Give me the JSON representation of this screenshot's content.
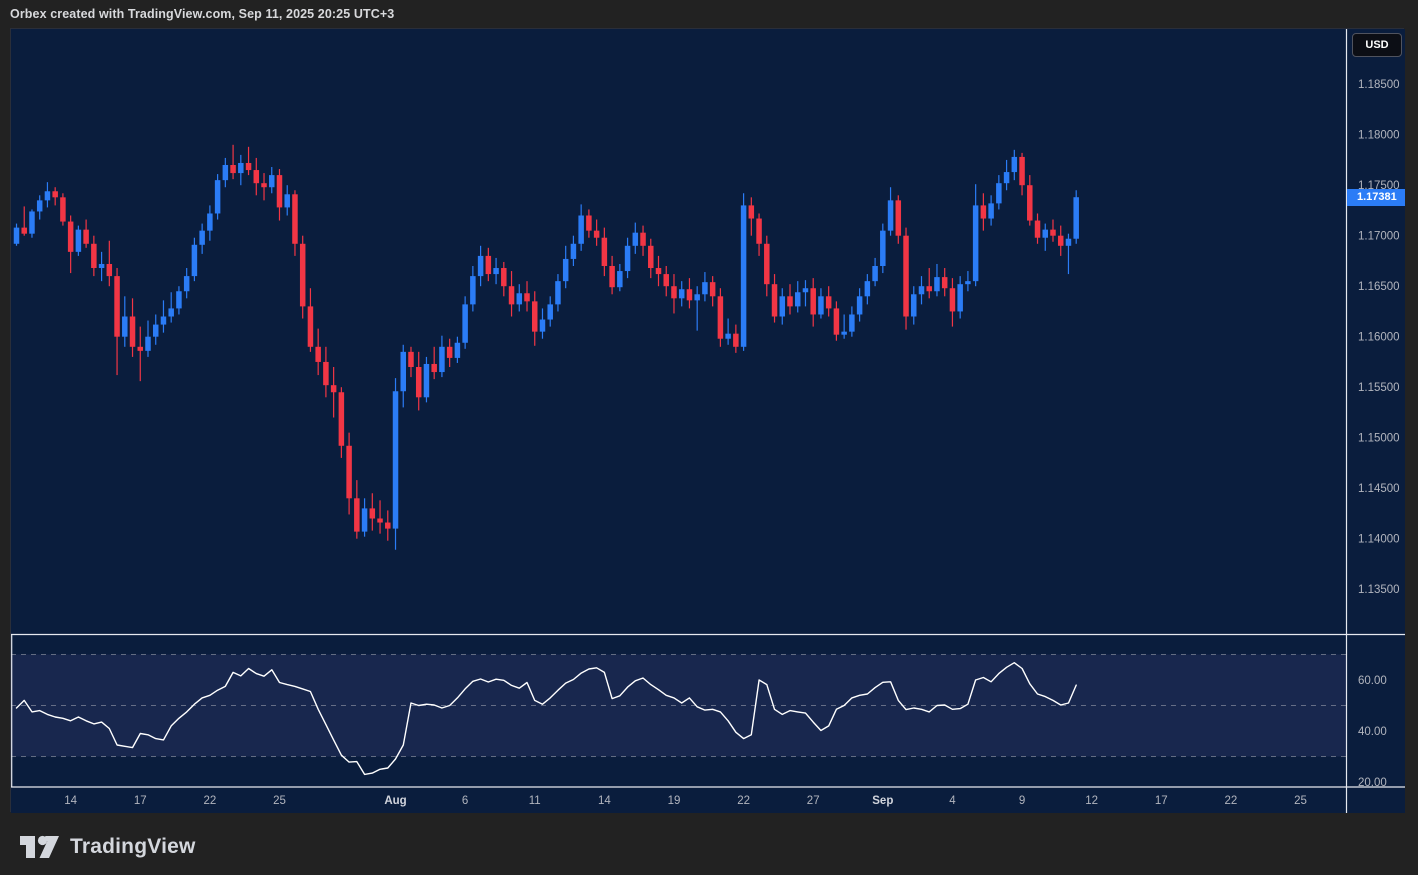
{
  "header": {
    "title": "Orbex created with TradingView.com, Sep 11, 2025 20:25 UTC+3"
  },
  "price_scale": {
    "currency_button": "USD",
    "ticks": [
      1.185,
      1.18,
      1.175,
      1.17,
      1.165,
      1.16,
      1.155,
      1.15,
      1.145,
      1.14,
      1.135
    ],
    "last_price": "1.17381"
  },
  "rsi_scale": {
    "ticks": [
      60,
      40,
      20
    ],
    "levels": [
      70,
      50,
      30
    ]
  },
  "time_scale": {
    "labels": [
      {
        "text": "14",
        "index": 7,
        "major": false
      },
      {
        "text": "17",
        "index": 16,
        "major": false
      },
      {
        "text": "22",
        "index": 25,
        "major": false
      },
      {
        "text": "25",
        "index": 34,
        "major": false
      },
      {
        "text": "Aug",
        "index": 49,
        "major": true
      },
      {
        "text": "6",
        "index": 58,
        "major": false
      },
      {
        "text": "11",
        "index": 67,
        "major": false
      },
      {
        "text": "14",
        "index": 76,
        "major": false
      },
      {
        "text": "19",
        "index": 85,
        "major": false
      },
      {
        "text": "22",
        "index": 94,
        "major": false
      },
      {
        "text": "27",
        "index": 103,
        "major": false
      },
      {
        "text": "Sep",
        "index": 112,
        "major": true
      },
      {
        "text": "4",
        "index": 121,
        "major": false
      },
      {
        "text": "9",
        "index": 130,
        "major": false
      },
      {
        "text": "12",
        "index": 139,
        "major": false
      },
      {
        "text": "17",
        "index": 148,
        "major": false
      },
      {
        "text": "22",
        "index": 157,
        "major": false
      },
      {
        "text": "25",
        "index": 166,
        "major": false
      }
    ]
  },
  "footer": {
    "brand": "TradingView"
  },
  "colors": {
    "bg_outer": "#222222",
    "bg_chart": "#0a1d3d",
    "up": "#2b7cf6",
    "down": "#f23645",
    "accent": "#2b7cf6",
    "axis_text": "#b2b5be",
    "axis_text_major": "#d1d4dc",
    "separator": "#e6e9f0",
    "rsi_line": "#ffffff",
    "rsi_band": "rgba(127,111,190,0.13)",
    "dashed_level": "rgba(178,181,190,0.5)"
  },
  "chart_data": {
    "type": "candlestick",
    "interval": "8h",
    "quote_currency": "USD",
    "price_range_visible": [
      1.135,
      1.185
    ],
    "rsi_levels": [
      70,
      50,
      30
    ],
    "candles": [
      [
        1.1692,
        1.1712,
        1.169,
        1.1708
      ],
      [
        1.1708,
        1.1729,
        1.17,
        1.1702
      ],
      [
        1.1702,
        1.1726,
        1.1698,
        1.1724
      ],
      [
        1.1724,
        1.174,
        1.1716,
        1.1735
      ],
      [
        1.1735,
        1.1753,
        1.1728,
        1.1744
      ],
      [
        1.1744,
        1.1748,
        1.173,
        1.1738
      ],
      [
        1.1738,
        1.1742,
        1.171,
        1.1714
      ],
      [
        1.1714,
        1.172,
        1.1663,
        1.1684
      ],
      [
        1.1684,
        1.171,
        1.168,
        1.1706
      ],
      [
        1.1706,
        1.1716,
        1.1688,
        1.1692
      ],
      [
        1.1692,
        1.17,
        1.166,
        1.1668
      ],
      [
        1.1668,
        1.1684,
        1.1655,
        1.1672
      ],
      [
        1.1672,
        1.1695,
        1.165,
        1.166
      ],
      [
        1.166,
        1.1668,
        1.1562,
        1.16
      ],
      [
        1.16,
        1.164,
        1.159,
        1.162
      ],
      [
        1.162,
        1.1638,
        1.158,
        1.159
      ],
      [
        1.159,
        1.161,
        1.1556,
        1.1586
      ],
      [
        1.1586,
        1.1616,
        1.158,
        1.16
      ],
      [
        1.16,
        1.1622,
        1.1592,
        1.1612
      ],
      [
        1.1612,
        1.1636,
        1.1604,
        1.162
      ],
      [
        1.162,
        1.1644,
        1.1614,
        1.1628
      ],
      [
        1.1628,
        1.165,
        1.1622,
        1.1645
      ],
      [
        1.1645,
        1.1668,
        1.1638,
        1.166
      ],
      [
        1.166,
        1.1698,
        1.1655,
        1.1691
      ],
      [
        1.1691,
        1.1712,
        1.1682,
        1.1705
      ],
      [
        1.1705,
        1.173,
        1.1695,
        1.1722
      ],
      [
        1.1722,
        1.1761,
        1.1716,
        1.1755
      ],
      [
        1.1755,
        1.1777,
        1.1748,
        1.177
      ],
      [
        1.177,
        1.179,
        1.1756,
        1.1762
      ],
      [
        1.1762,
        1.178,
        1.175,
        1.1772
      ],
      [
        1.1772,
        1.1788,
        1.176,
        1.1765
      ],
      [
        1.1765,
        1.1777,
        1.174,
        1.1752
      ],
      [
        1.1752,
        1.1762,
        1.1735,
        1.1748
      ],
      [
        1.1748,
        1.1768,
        1.1742,
        1.176
      ],
      [
        1.176,
        1.1766,
        1.1715,
        1.1728
      ],
      [
        1.1728,
        1.175,
        1.172,
        1.1741
      ],
      [
        1.1741,
        1.1745,
        1.168,
        1.1692
      ],
      [
        1.1692,
        1.17,
        1.1618,
        1.163
      ],
      [
        1.163,
        1.1648,
        1.1585,
        1.159
      ],
      [
        1.159,
        1.1608,
        1.1562,
        1.1575
      ],
      [
        1.1575,
        1.159,
        1.154,
        1.1552
      ],
      [
        1.1552,
        1.157,
        1.152,
        1.1545
      ],
      [
        1.1545,
        1.155,
        1.148,
        1.1492
      ],
      [
        1.1492,
        1.1505,
        1.1424,
        1.144
      ],
      [
        1.144,
        1.1458,
        1.14,
        1.1407
      ],
      [
        1.1407,
        1.144,
        1.1402,
        1.143
      ],
      [
        1.143,
        1.1445,
        1.1408,
        1.142
      ],
      [
        1.142,
        1.1438,
        1.1405,
        1.1416
      ],
      [
        1.1416,
        1.1428,
        1.1398,
        1.141
      ],
      [
        1.141,
        1.1559,
        1.1389,
        1.1546
      ],
      [
        1.1546,
        1.1592,
        1.153,
        1.1585
      ],
      [
        1.1585,
        1.159,
        1.156,
        1.157
      ],
      [
        1.157,
        1.1585,
        1.1527,
        1.154
      ],
      [
        1.154,
        1.158,
        1.1535,
        1.1573
      ],
      [
        1.1573,
        1.159,
        1.1558,
        1.1565
      ],
      [
        1.1565,
        1.1601,
        1.156,
        1.159
      ],
      [
        1.159,
        1.1598,
        1.157,
        1.1579
      ],
      [
        1.1579,
        1.16,
        1.1574,
        1.1594
      ],
      [
        1.1594,
        1.164,
        1.1588,
        1.1632
      ],
      [
        1.1632,
        1.167,
        1.1625,
        1.166
      ],
      [
        1.166,
        1.169,
        1.165,
        1.168
      ],
      [
        1.168,
        1.1688,
        1.1655,
        1.1662
      ],
      [
        1.1662,
        1.1678,
        1.1652,
        1.1668
      ],
      [
        1.1668,
        1.1674,
        1.164,
        1.165
      ],
      [
        1.165,
        1.1665,
        1.162,
        1.1632
      ],
      [
        1.1632,
        1.1652,
        1.1625,
        1.1643
      ],
      [
        1.1643,
        1.1655,
        1.1625,
        1.1635
      ],
      [
        1.1635,
        1.1645,
        1.1591,
        1.1605
      ],
      [
        1.1605,
        1.1628,
        1.1598,
        1.1617
      ],
      [
        1.1617,
        1.164,
        1.161,
        1.1632
      ],
      [
        1.1632,
        1.1662,
        1.1625,
        1.1655
      ],
      [
        1.1655,
        1.169,
        1.1648,
        1.1677
      ],
      [
        1.1677,
        1.17,
        1.167,
        1.1692
      ],
      [
        1.1692,
        1.1731,
        1.1685,
        1.172
      ],
      [
        1.172,
        1.1726,
        1.1698,
        1.1705
      ],
      [
        1.1705,
        1.1716,
        1.169,
        1.1698
      ],
      [
        1.1698,
        1.1708,
        1.166,
        1.167
      ],
      [
        1.167,
        1.168,
        1.1642,
        1.1649
      ],
      [
        1.1649,
        1.1672,
        1.1645,
        1.1665
      ],
      [
        1.1665,
        1.1698,
        1.1658,
        1.169
      ],
      [
        1.169,
        1.1713,
        1.1682,
        1.1703
      ],
      [
        1.1703,
        1.171,
        1.168,
        1.169
      ],
      [
        1.169,
        1.1697,
        1.1658,
        1.1668
      ],
      [
        1.1668,
        1.168,
        1.165,
        1.1662
      ],
      [
        1.1662,
        1.167,
        1.164,
        1.165
      ],
      [
        1.165,
        1.1662,
        1.1623,
        1.1638
      ],
      [
        1.1638,
        1.1655,
        1.163,
        1.1647
      ],
      [
        1.1647,
        1.1658,
        1.1628,
        1.1636
      ],
      [
        1.1636,
        1.165,
        1.1606,
        1.1642
      ],
      [
        1.1642,
        1.1664,
        1.1635,
        1.1654
      ],
      [
        1.1654,
        1.166,
        1.163,
        1.164
      ],
      [
        1.164,
        1.1648,
        1.159,
        1.1598
      ],
      [
        1.1598,
        1.1618,
        1.1592,
        1.1603
      ],
      [
        1.1603,
        1.1612,
        1.1584,
        1.159
      ],
      [
        1.159,
        1.1742,
        1.1586,
        1.173
      ],
      [
        1.173,
        1.1738,
        1.17,
        1.1717
      ],
      [
        1.1717,
        1.1722,
        1.168,
        1.1692
      ],
      [
        1.1692,
        1.17,
        1.164,
        1.1652
      ],
      [
        1.1652,
        1.1662,
        1.1614,
        1.162
      ],
      [
        1.162,
        1.1648,
        1.1612,
        1.164
      ],
      [
        1.164,
        1.1652,
        1.1622,
        1.163
      ],
      [
        1.163,
        1.1655,
        1.1624,
        1.1644
      ],
      [
        1.1644,
        1.1656,
        1.163,
        1.1648
      ],
      [
        1.1648,
        1.1658,
        1.161,
        1.1622
      ],
      [
        1.1622,
        1.1648,
        1.1618,
        1.164
      ],
      [
        1.164,
        1.165,
        1.162,
        1.1628
      ],
      [
        1.1628,
        1.1635,
        1.1596,
        1.1602
      ],
      [
        1.1602,
        1.1622,
        1.1598,
        1.1605
      ],
      [
        1.1605,
        1.163,
        1.16,
        1.1622
      ],
      [
        1.1622,
        1.1648,
        1.1615,
        1.164
      ],
      [
        1.164,
        1.1662,
        1.1632,
        1.1655
      ],
      [
        1.1655,
        1.1678,
        1.165,
        1.167
      ],
      [
        1.167,
        1.1712,
        1.1663,
        1.1705
      ],
      [
        1.1705,
        1.1748,
        1.17,
        1.1735
      ],
      [
        1.1735,
        1.174,
        1.1692,
        1.17
      ],
      [
        1.17,
        1.1708,
        1.1607,
        1.162
      ],
      [
        1.162,
        1.165,
        1.1612,
        1.1642
      ],
      [
        1.1642,
        1.166,
        1.1632,
        1.165
      ],
      [
        1.165,
        1.1668,
        1.1638,
        1.1645
      ],
      [
        1.1645,
        1.1672,
        1.164,
        1.1659
      ],
      [
        1.1659,
        1.1668,
        1.164,
        1.1648
      ],
      [
        1.1648,
        1.1658,
        1.161,
        1.1625
      ],
      [
        1.1625,
        1.166,
        1.1618,
        1.1652
      ],
      [
        1.1652,
        1.1665,
        1.1645,
        1.1655
      ],
      [
        1.1655,
        1.1751,
        1.165,
        1.173
      ],
      [
        1.173,
        1.1742,
        1.1705,
        1.1717
      ],
      [
        1.1717,
        1.174,
        1.171,
        1.1732
      ],
      [
        1.1732,
        1.176,
        1.1726,
        1.1752
      ],
      [
        1.1752,
        1.1775,
        1.1745,
        1.1763
      ],
      [
        1.1763,
        1.1785,
        1.1755,
        1.1778
      ],
      [
        1.1778,
        1.1782,
        1.174,
        1.175
      ],
      [
        1.175,
        1.176,
        1.171,
        1.1715
      ],
      [
        1.1715,
        1.1722,
        1.1692,
        1.1698
      ],
      [
        1.1698,
        1.1712,
        1.1685,
        1.1706
      ],
      [
        1.1706,
        1.1716,
        1.1694,
        1.17
      ],
      [
        1.17,
        1.171,
        1.168,
        1.169
      ],
      [
        1.169,
        1.1702,
        1.1662,
        1.1697
      ],
      [
        1.1697,
        1.1745,
        1.1692,
        1.17381
      ]
    ],
    "rsi": {
      "type": "line",
      "values": [
        49,
        52,
        47.5,
        48,
        46.5,
        45.5,
        45,
        44,
        45.5,
        44,
        42.8,
        43.5,
        41,
        34.5,
        34,
        33.5,
        39,
        38.5,
        37,
        36.5,
        42,
        45,
        47.5,
        50.5,
        53,
        54,
        56,
        57.5,
        63,
        61.6,
        64.5,
        62.5,
        61.5,
        64,
        59,
        58.2,
        57.5,
        56.5,
        55.5,
        48.5,
        42.5,
        36.5,
        30.5,
        27.8,
        28,
        23,
        23.5,
        25,
        25.5,
        29,
        34.5,
        51,
        50,
        50.5,
        50.2,
        49,
        50,
        53,
        56.5,
        59.5,
        60.4,
        59.2,
        60.3,
        59.9,
        57.9,
        56.8,
        59,
        52,
        50.5,
        53,
        56,
        58.8,
        60.2,
        62.7,
        64.3,
        64.8,
        63,
        52.7,
        53.8,
        57.2,
        59.7,
        60.8,
        58.2,
        56.2,
        54,
        53,
        51,
        53,
        49.5,
        48.2,
        48.5,
        47.5,
        44,
        39.5,
        37,
        38.5,
        60,
        58.2,
        48.5,
        46.5,
        48,
        47.5,
        47,
        43.5,
        40.2,
        42,
        48.5,
        50,
        53,
        54,
        54.5,
        57,
        59.1,
        59.3,
        52,
        48.4,
        49,
        48.5,
        47.5,
        50,
        50.2,
        48.5,
        48.8,
        50.5,
        60,
        61,
        59.3,
        62.5,
        65,
        66.8,
        64.5,
        58.5,
        54.5,
        53.5,
        52,
        50.2,
        51,
        58
      ]
    }
  }
}
